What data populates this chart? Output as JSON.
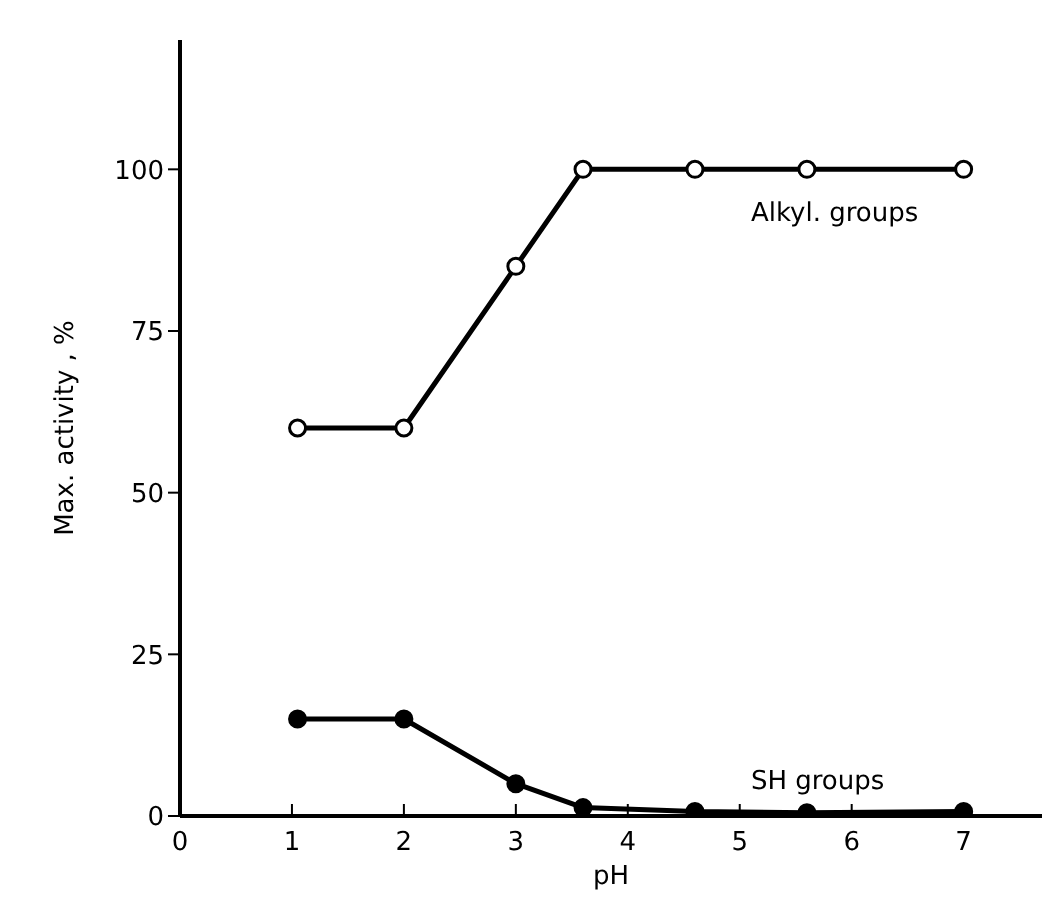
{
  "chart_data": {
    "type": "line",
    "xlabel": "pH",
    "ylabel": "Max. activity ,   %",
    "xlim": [
      0,
      7.7
    ],
    "xticks": [
      0,
      1,
      2,
      3,
      4,
      5,
      6,
      7
    ],
    "ylim": [
      0,
      120
    ],
    "yticks": [
      0,
      25,
      50,
      75,
      100
    ],
    "grid": false,
    "legend": false,
    "marker": "circle",
    "line_style": "solid",
    "series": [
      {
        "name": "Alkyl. groups",
        "color": "#000000",
        "x": [
          1.05,
          2,
          3,
          3.6,
          4.6,
          5.6,
          7
        ],
        "values": [
          60,
          60,
          85,
          100,
          100,
          100,
          100
        ]
      },
      {
        "name": "SH groups",
        "color": "#000000",
        "x": [
          1.05,
          2,
          3,
          3.6,
          4.6,
          5.6,
          7
        ],
        "values": [
          15,
          15,
          5,
          1.3,
          0.7,
          0.5,
          0.7
        ]
      }
    ]
  }
}
